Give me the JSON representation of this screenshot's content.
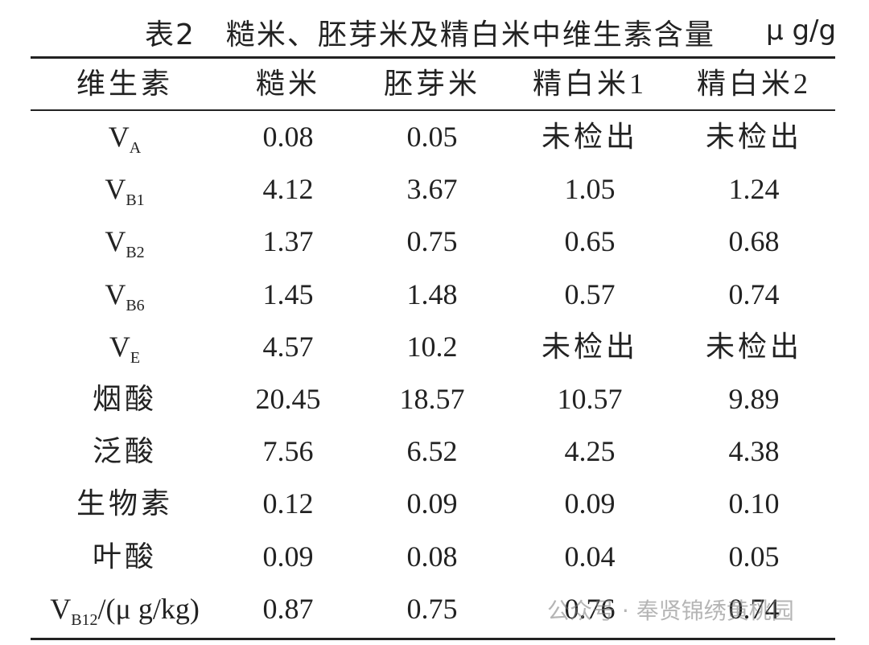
{
  "header": {
    "title": "表2　糙米、胚芽米及精白米中维生素含量",
    "unit": "μ g/g"
  },
  "table": {
    "columns": [
      "维生素",
      "糙米",
      "胚芽米",
      "精白米1",
      "精白米2"
    ],
    "rows": [
      [
        {
          "text": "V",
          "sub": "A"
        },
        "0.08",
        "0.05",
        "未检出",
        "未检出"
      ],
      [
        {
          "text": "V",
          "sub": "B1"
        },
        "4.12",
        "3.67",
        "1.05",
        "1.24"
      ],
      [
        {
          "text": "V",
          "sub": "B2"
        },
        "1.37",
        "0.75",
        "0.65",
        "0.68"
      ],
      [
        {
          "text": "V",
          "sub": "B6"
        },
        "1.45",
        "1.48",
        "0.57",
        "0.74"
      ],
      [
        {
          "text": "V",
          "sub": "E"
        },
        "4.57",
        "10.2",
        "未检出",
        "未检出"
      ],
      [
        "烟酸",
        "20.45",
        "18.57",
        "10.57",
        "9.89"
      ],
      [
        "泛酸",
        "7.56",
        "6.52",
        "4.25",
        "4.38"
      ],
      [
        "生物素",
        "0.12",
        "0.09",
        "0.09",
        "0.10"
      ],
      [
        "叶酸",
        "0.09",
        "0.08",
        "0.04",
        "0.05"
      ],
      [
        {
          "text": "V",
          "sub": "B12",
          "suffix": "/(μ g/kg)"
        },
        "0.87",
        "0.75",
        "0.76",
        "0.74"
      ]
    ]
  },
  "watermark": "公众号 · 奉贤锦绣黄桃园"
}
